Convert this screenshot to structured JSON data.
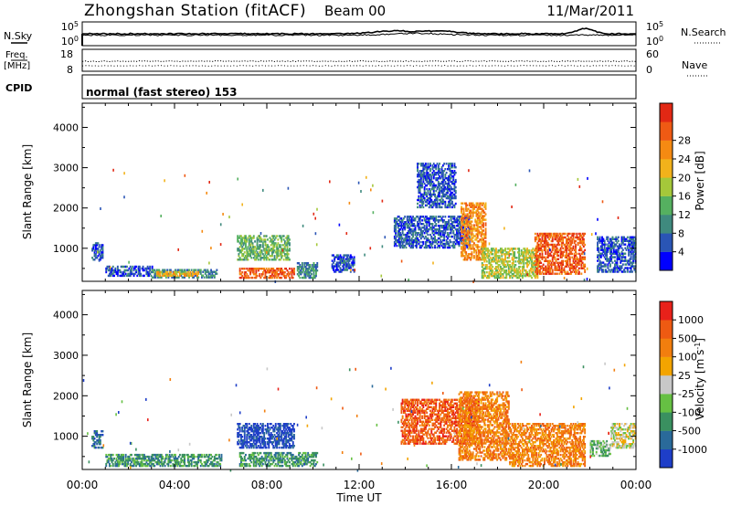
{
  "header": {
    "station": "Zhongshan Station (fitACF)",
    "beam": "Beam 00",
    "date": "11/Mar/2011"
  },
  "strip1": {
    "left_label": "N.Sky",
    "right_label": "N.Search",
    "left_ticks": [
      "10^5",
      "10^0"
    ],
    "right_ticks": [
      "10^5",
      "10^0"
    ]
  },
  "strip2": {
    "left_label_1": "Freq.",
    "left_label_2": "[MHz]",
    "right_label": "Nave",
    "left_ticks": [
      "18",
      "8"
    ],
    "right_ticks": [
      "60",
      "0"
    ]
  },
  "cpid": {
    "label": "CPID",
    "value": "normal (fast stereo) 153"
  },
  "chart_data": [
    {
      "type": "heatmap",
      "name": "power",
      "ylabel": "Slant Range [km]",
      "ylim": [
        180,
        4600
      ],
      "yticks": [
        1000,
        2000,
        3000,
        4000
      ],
      "xlim": [
        0,
        24
      ],
      "colorbar": {
        "label": "Power [dB]",
        "ticks": [
          "4",
          "8",
          "12",
          "16",
          "20",
          "24",
          "28"
        ],
        "colors": [
          "#0000ff",
          "#2a55b5",
          "#3f8a7e",
          "#55b060",
          "#a5c83a",
          "#f2b21b",
          "#f58a12",
          "#ef5a14",
          "#e22814"
        ]
      },
      "regions": [
        {
          "t0": 0.4,
          "t1": 0.9,
          "r0": 700,
          "r1": 1150,
          "c": 1
        },
        {
          "t0": 1.0,
          "t1": 3.0,
          "r0": 300,
          "r1": 560,
          "c": 1
        },
        {
          "t0": 3.0,
          "t1": 5.8,
          "r0": 260,
          "r1": 480,
          "c": 2
        },
        {
          "t0": 3.2,
          "t1": 5.0,
          "r0": 300,
          "r1": 420,
          "c": 5
        },
        {
          "t0": 6.8,
          "t1": 9.2,
          "r0": 250,
          "r1": 520,
          "c": 7
        },
        {
          "t0": 6.7,
          "t1": 9.0,
          "r0": 700,
          "r1": 1300,
          "c": 3
        },
        {
          "t0": 9.3,
          "t1": 10.2,
          "r0": 250,
          "r1": 620,
          "c": 2
        },
        {
          "t0": 10.8,
          "t1": 11.8,
          "r0": 400,
          "r1": 850,
          "c": 1
        },
        {
          "t0": 13.5,
          "t1": 16.8,
          "r0": 1000,
          "r1": 1800,
          "c": 1
        },
        {
          "t0": 14.5,
          "t1": 16.2,
          "r0": 2000,
          "r1": 3100,
          "c": 1
        },
        {
          "t0": 16.4,
          "t1": 17.5,
          "r0": 700,
          "r1": 2100,
          "c": 6
        },
        {
          "t0": 17.3,
          "t1": 19.8,
          "r0": 250,
          "r1": 1000,
          "c": 4
        },
        {
          "t0": 19.6,
          "t1": 21.8,
          "r0": 350,
          "r1": 1350,
          "c": 7
        },
        {
          "t0": 22.3,
          "t1": 24.0,
          "r0": 400,
          "r1": 1300,
          "c": 1
        }
      ]
    },
    {
      "type": "heatmap",
      "name": "velocity",
      "ylabel": "Slant Range [km]",
      "xlabel": "Time UT",
      "ylim": [
        180,
        4600
      ],
      "yticks": [
        1000,
        2000,
        3000,
        4000
      ],
      "xlim": [
        0,
        24
      ],
      "xticks": [
        "00:00",
        "04:00",
        "08:00",
        "12:00",
        "16:00",
        "20:00",
        "00:00"
      ],
      "colorbar": {
        "label": "Velocity [m s^-1]",
        "ticks": [
          "1000",
          "500",
          "100",
          "25",
          "-25",
          "-100",
          "-500",
          "-1000"
        ],
        "colors": [
          "#1e3ec8",
          "#2a6a9a",
          "#3a9060",
          "#66c043",
          "#c8c8c8",
          "#f3a400",
          "#f27e0e",
          "#ee5a12",
          "#e8211a"
        ]
      },
      "regions": [
        {
          "t0": 0.4,
          "t1": 0.9,
          "r0": 700,
          "r1": 1150,
          "c": 1
        },
        {
          "t0": 1.0,
          "t1": 6.0,
          "r0": 250,
          "r1": 560,
          "c": 2
        },
        {
          "t0": 6.7,
          "t1": 9.2,
          "r0": 700,
          "r1": 1300,
          "c": 0
        },
        {
          "t0": 6.8,
          "t1": 10.2,
          "r0": 250,
          "r1": 600,
          "c": 2
        },
        {
          "t0": 13.8,
          "t1": 17.2,
          "r0": 800,
          "r1": 1900,
          "c": 7
        },
        {
          "t0": 16.3,
          "t1": 18.5,
          "r0": 400,
          "r1": 2100,
          "c": 6
        },
        {
          "t0": 18.5,
          "t1": 21.8,
          "r0": 250,
          "r1": 1300,
          "c": 6
        },
        {
          "t0": 22.0,
          "t1": 22.9,
          "r0": 500,
          "r1": 900,
          "c": 3
        },
        {
          "t0": 22.9,
          "t1": 24.0,
          "r0": 700,
          "r1": 1300,
          "c": 4
        }
      ]
    }
  ]
}
